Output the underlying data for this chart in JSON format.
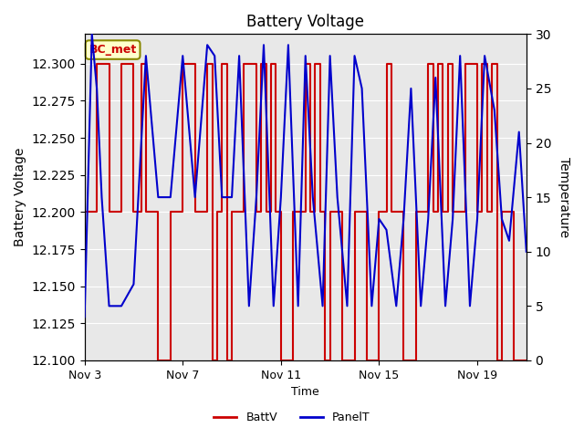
{
  "title": "Battery Voltage",
  "xlabel": "Time",
  "ylabel_left": "Battery Voltage",
  "ylabel_right": "Temperature",
  "ylim_left": [
    12.1,
    12.32
  ],
  "ylim_right": [
    0,
    30
  ],
  "x_tick_labels": [
    "Nov 3",
    "Nov 7",
    "Nov 11",
    "Nov 15",
    "Nov 19"
  ],
  "x_tick_positions": [
    0,
    4,
    8,
    12,
    16
  ],
  "annotation_text": "BC_met",
  "annotation_color": "#cc0000",
  "annotation_bg": "#ffffcc",
  "legend_labels": [
    "BattV",
    "PanelT"
  ],
  "legend_colors": [
    "#cc0000",
    "#0000cc"
  ],
  "batt_color": "#cc0000",
  "panel_color": "#0000cc",
  "bg_color": "#ffffff",
  "grid_color": "#cccccc",
  "batt_data_x": [
    0,
    0.5,
    0.5,
    1.0,
    1.0,
    1.5,
    1.5,
    2.0,
    2.0,
    2.3,
    2.3,
    2.5,
    2.5,
    3.0,
    3.0,
    3.5,
    3.5,
    4.0,
    4.0,
    4.5,
    4.5,
    5.0,
    5.0,
    5.2,
    5.2,
    5.4,
    5.4,
    5.6,
    5.6,
    5.8,
    5.8,
    6.0,
    6.0,
    6.5,
    6.5,
    7.0,
    7.0,
    7.2,
    7.2,
    7.4,
    7.4,
    7.6,
    7.6,
    7.8,
    7.8,
    8.0,
    8.0,
    8.5,
    8.5,
    9.0,
    9.0,
    9.2,
    9.2,
    9.4,
    9.4,
    9.6,
    9.6,
    9.8,
    9.8,
    10.0,
    10.0,
    10.5,
    10.5,
    11.0,
    11.0,
    11.5,
    11.5,
    12.0,
    12.0,
    12.3,
    12.3,
    12.5,
    12.5,
    13.0,
    13.0,
    13.5,
    13.5,
    14.0,
    14.0,
    14.2,
    14.2,
    14.4,
    14.4,
    14.6,
    14.6,
    14.8,
    14.8,
    15.0,
    15.0,
    15.5,
    15.5,
    16.0,
    16.0,
    16.2,
    16.2,
    16.4,
    16.4,
    16.6,
    16.6,
    16.8,
    16.8,
    17.0,
    17.0,
    17.5,
    17.5,
    18.0
  ],
  "batt_data_y": [
    12.2,
    12.2,
    12.3,
    12.3,
    12.2,
    12.2,
    12.3,
    12.3,
    12.2,
    12.2,
    12.3,
    12.3,
    12.2,
    12.2,
    12.1,
    12.1,
    12.2,
    12.2,
    12.3,
    12.3,
    12.2,
    12.2,
    12.3,
    12.3,
    12.1,
    12.1,
    12.2,
    12.2,
    12.3,
    12.3,
    12.1,
    12.1,
    12.2,
    12.2,
    12.3,
    12.3,
    12.2,
    12.2,
    12.3,
    12.3,
    12.2,
    12.2,
    12.3,
    12.3,
    12.2,
    12.2,
    12.1,
    12.1,
    12.2,
    12.2,
    12.3,
    12.3,
    12.2,
    12.2,
    12.3,
    12.3,
    12.2,
    12.2,
    12.1,
    12.1,
    12.2,
    12.2,
    12.1,
    12.1,
    12.2,
    12.2,
    12.1,
    12.1,
    12.2,
    12.2,
    12.3,
    12.3,
    12.2,
    12.2,
    12.1,
    12.1,
    12.2,
    12.2,
    12.3,
    12.3,
    12.2,
    12.2,
    12.3,
    12.3,
    12.2,
    12.2,
    12.3,
    12.3,
    12.2,
    12.2,
    12.3,
    12.3,
    12.2,
    12.2,
    12.3,
    12.3,
    12.2,
    12.2,
    12.3,
    12.3,
    12.1,
    12.1,
    12.2,
    12.2,
    12.1,
    12.1
  ],
  "panel_data_x": [
    0,
    0.3,
    0.5,
    0.7,
    1.0,
    1.5,
    2.0,
    2.5,
    3.0,
    3.5,
    4.0,
    4.5,
    5.0,
    5.3,
    5.6,
    6.0,
    6.3,
    6.7,
    7.0,
    7.3,
    7.7,
    8.0,
    8.3,
    8.7,
    9.0,
    9.3,
    9.7,
    10.0,
    10.3,
    10.7,
    11.0,
    11.3,
    11.7,
    12.0,
    12.3,
    12.7,
    13.0,
    13.3,
    13.7,
    14.0,
    14.3,
    14.7,
    15.0,
    15.3,
    15.7,
    16.0,
    16.3,
    16.7,
    17.0,
    17.3,
    17.7,
    18.0
  ],
  "panel_data_y": [
    4,
    30,
    25,
    15,
    5,
    5,
    7,
    28,
    15,
    15,
    28,
    15,
    29,
    28,
    15,
    15,
    28,
    5,
    15,
    29,
    5,
    15,
    29,
    5,
    28,
    15,
    5,
    28,
    15,
    5,
    28,
    25,
    5,
    13,
    12,
    5,
    13,
    25,
    5,
    13,
    26,
    5,
    13,
    28,
    5,
    13,
    28,
    23,
    13,
    11,
    21,
    10
  ]
}
